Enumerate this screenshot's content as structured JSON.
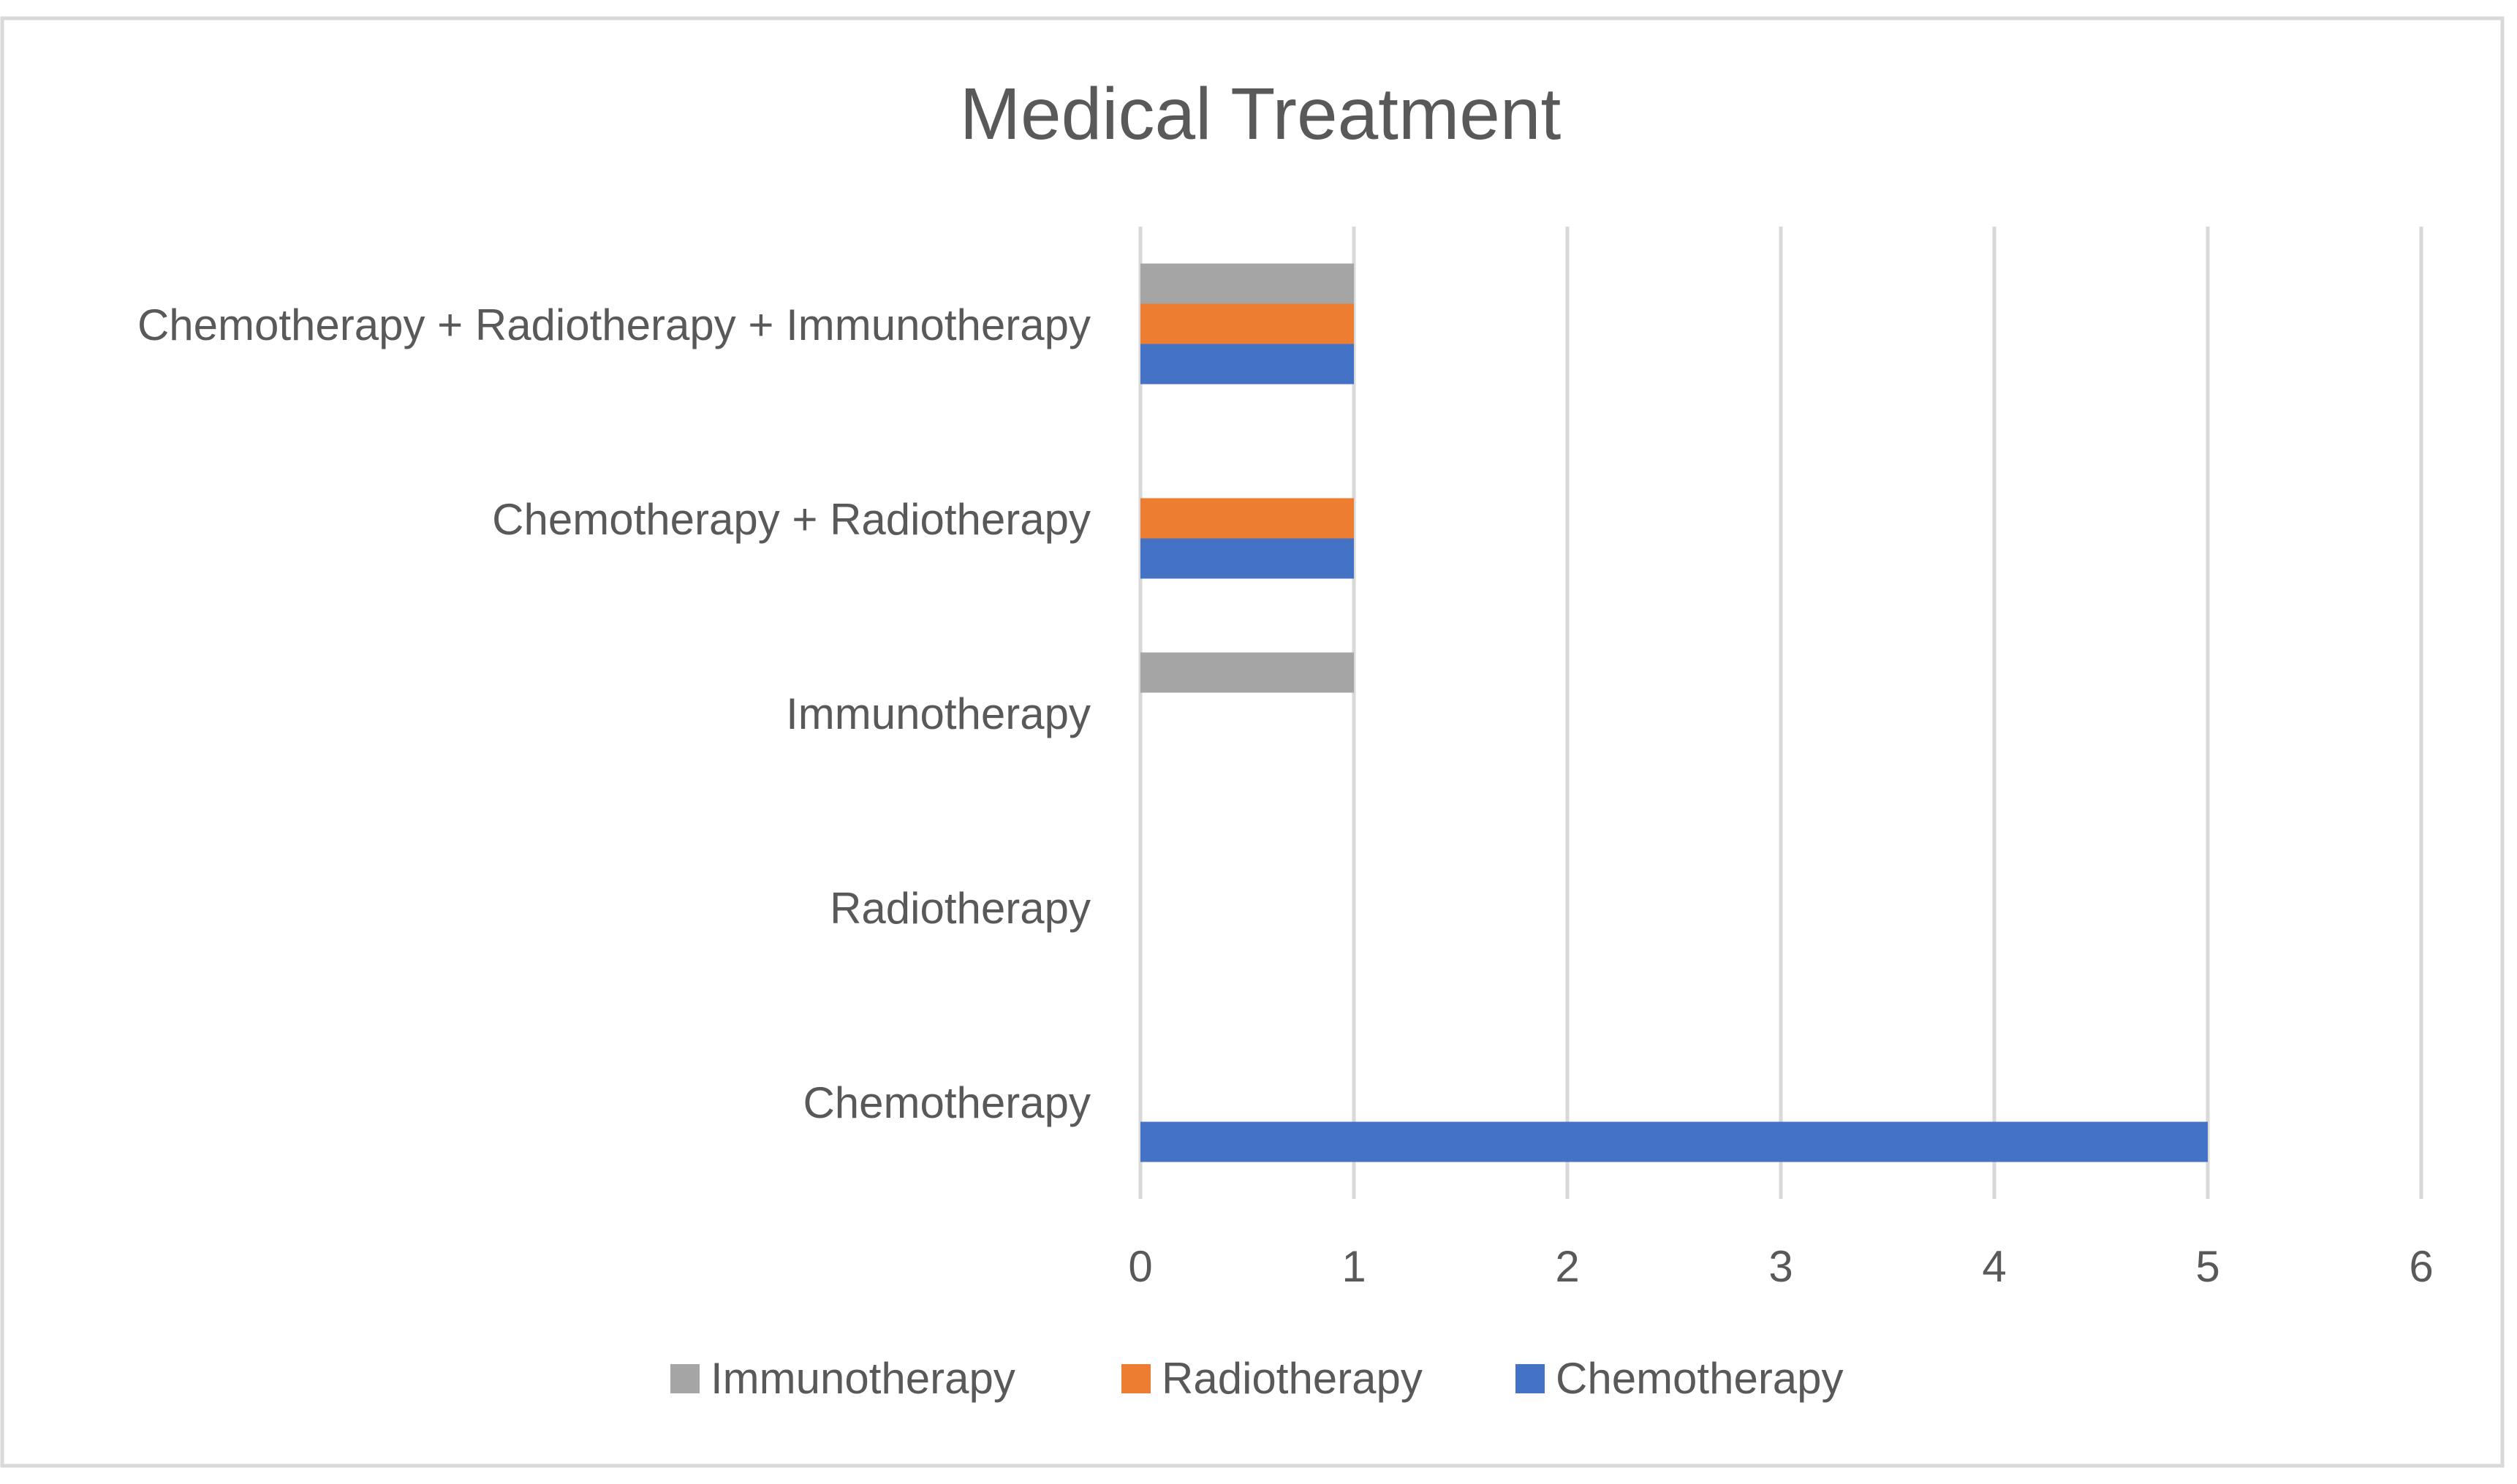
{
  "chart_data": {
    "type": "bar",
    "orientation": "horizontal",
    "title": "Medical Treatment",
    "categories": [
      "Chemotherapy",
      "Radiotherapy",
      "Immunotherapy",
      "Chemotherapy + Radiotherapy",
      "Chemotherapy + Radiotherapy + Immunotherapy"
    ],
    "series": [
      {
        "name": "Chemotherapy",
        "color": "#4472c4",
        "values": [
          5,
          0,
          0,
          1,
          1
        ]
      },
      {
        "name": "Radiotherapy",
        "color": "#ed7d31",
        "values": [
          0,
          0,
          0,
          1,
          1
        ]
      },
      {
        "name": "Immunotherapy",
        "color": "#a5a5a5",
        "values": [
          0,
          0,
          1,
          0,
          1
        ]
      }
    ],
    "xlim": [
      0,
      6
    ],
    "xticks": [
      "0",
      "1",
      "2",
      "3",
      "4",
      "5",
      "6"
    ],
    "grid": "vertical",
    "legend": {
      "position": "bottom",
      "entries": [
        "Immunotherapy",
        "Radiotherapy",
        "Chemotherapy"
      ]
    }
  }
}
